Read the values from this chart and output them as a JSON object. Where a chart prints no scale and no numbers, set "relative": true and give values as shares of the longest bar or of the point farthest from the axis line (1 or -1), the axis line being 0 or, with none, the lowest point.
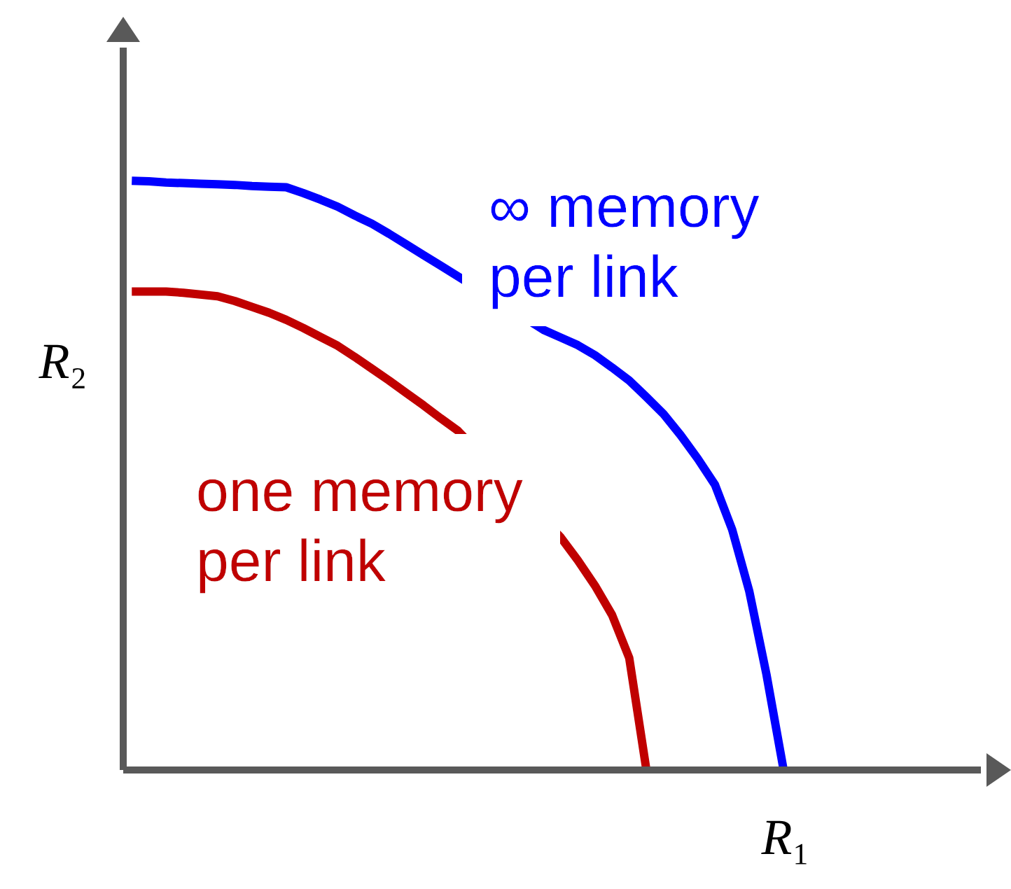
{
  "chart_data": {
    "type": "line",
    "relative": true,
    "xlabel": "R₁",
    "ylabel": "R₂",
    "marker": "none",
    "line_style": "solid",
    "categories": [
      null,
      null,
      null,
      null,
      null,
      null,
      null,
      null,
      null,
      null,
      null,
      null,
      null,
      null,
      null,
      null,
      null,
      null,
      null,
      null,
      null,
      null,
      null,
      null,
      null,
      null,
      null,
      null,
      null,
      null,
      null,
      null,
      null,
      null,
      null,
      null,
      null,
      null,
      null,
      null,
      null,
      null,
      null,
      null,
      null,
      null,
      null,
      null,
      null,
      null
    ],
    "series": [
      {
        "name": "∞ memory per link",
        "color": "#0000ff",
        "values": [
          1.0,
          0.999,
          0.997,
          0.996,
          0.995,
          0.994,
          0.993,
          0.991,
          0.99,
          0.989,
          0.979,
          0.968,
          0.956,
          0.941,
          0.927,
          0.91,
          0.892,
          0.874,
          0.856,
          0.838,
          null,
          null,
          null,
          null,
          0.747,
          0.734,
          0.721,
          0.704,
          0.683,
          0.661,
          0.633,
          0.604,
          0.568,
          0.528,
          0.484,
          0.408,
          0.303,
          0.162,
          0,
          null,
          null,
          null,
          null,
          null,
          null,
          null,
          null,
          null,
          null,
          null
        ]
      },
      {
        "name": "one memory per link",
        "color": "#c00000",
        "values": [
          0.812,
          0.812,
          0.812,
          0.81,
          0.807,
          0.804,
          0.796,
          0.786,
          0.776,
          0.764,
          0.75,
          0.735,
          0.72,
          0.701,
          0.681,
          0.661,
          0.64,
          0.619,
          0.597,
          0.576,
          null,
          null,
          null,
          null,
          null,
          0.395,
          0.356,
          0.313,
          0.263,
          0.19,
          0,
          null,
          null,
          null,
          null,
          null,
          null,
          null,
          null,
          null,
          null,
          null,
          null,
          null,
          null,
          null,
          null,
          null,
          null,
          null
        ]
      }
    ]
  }
}
